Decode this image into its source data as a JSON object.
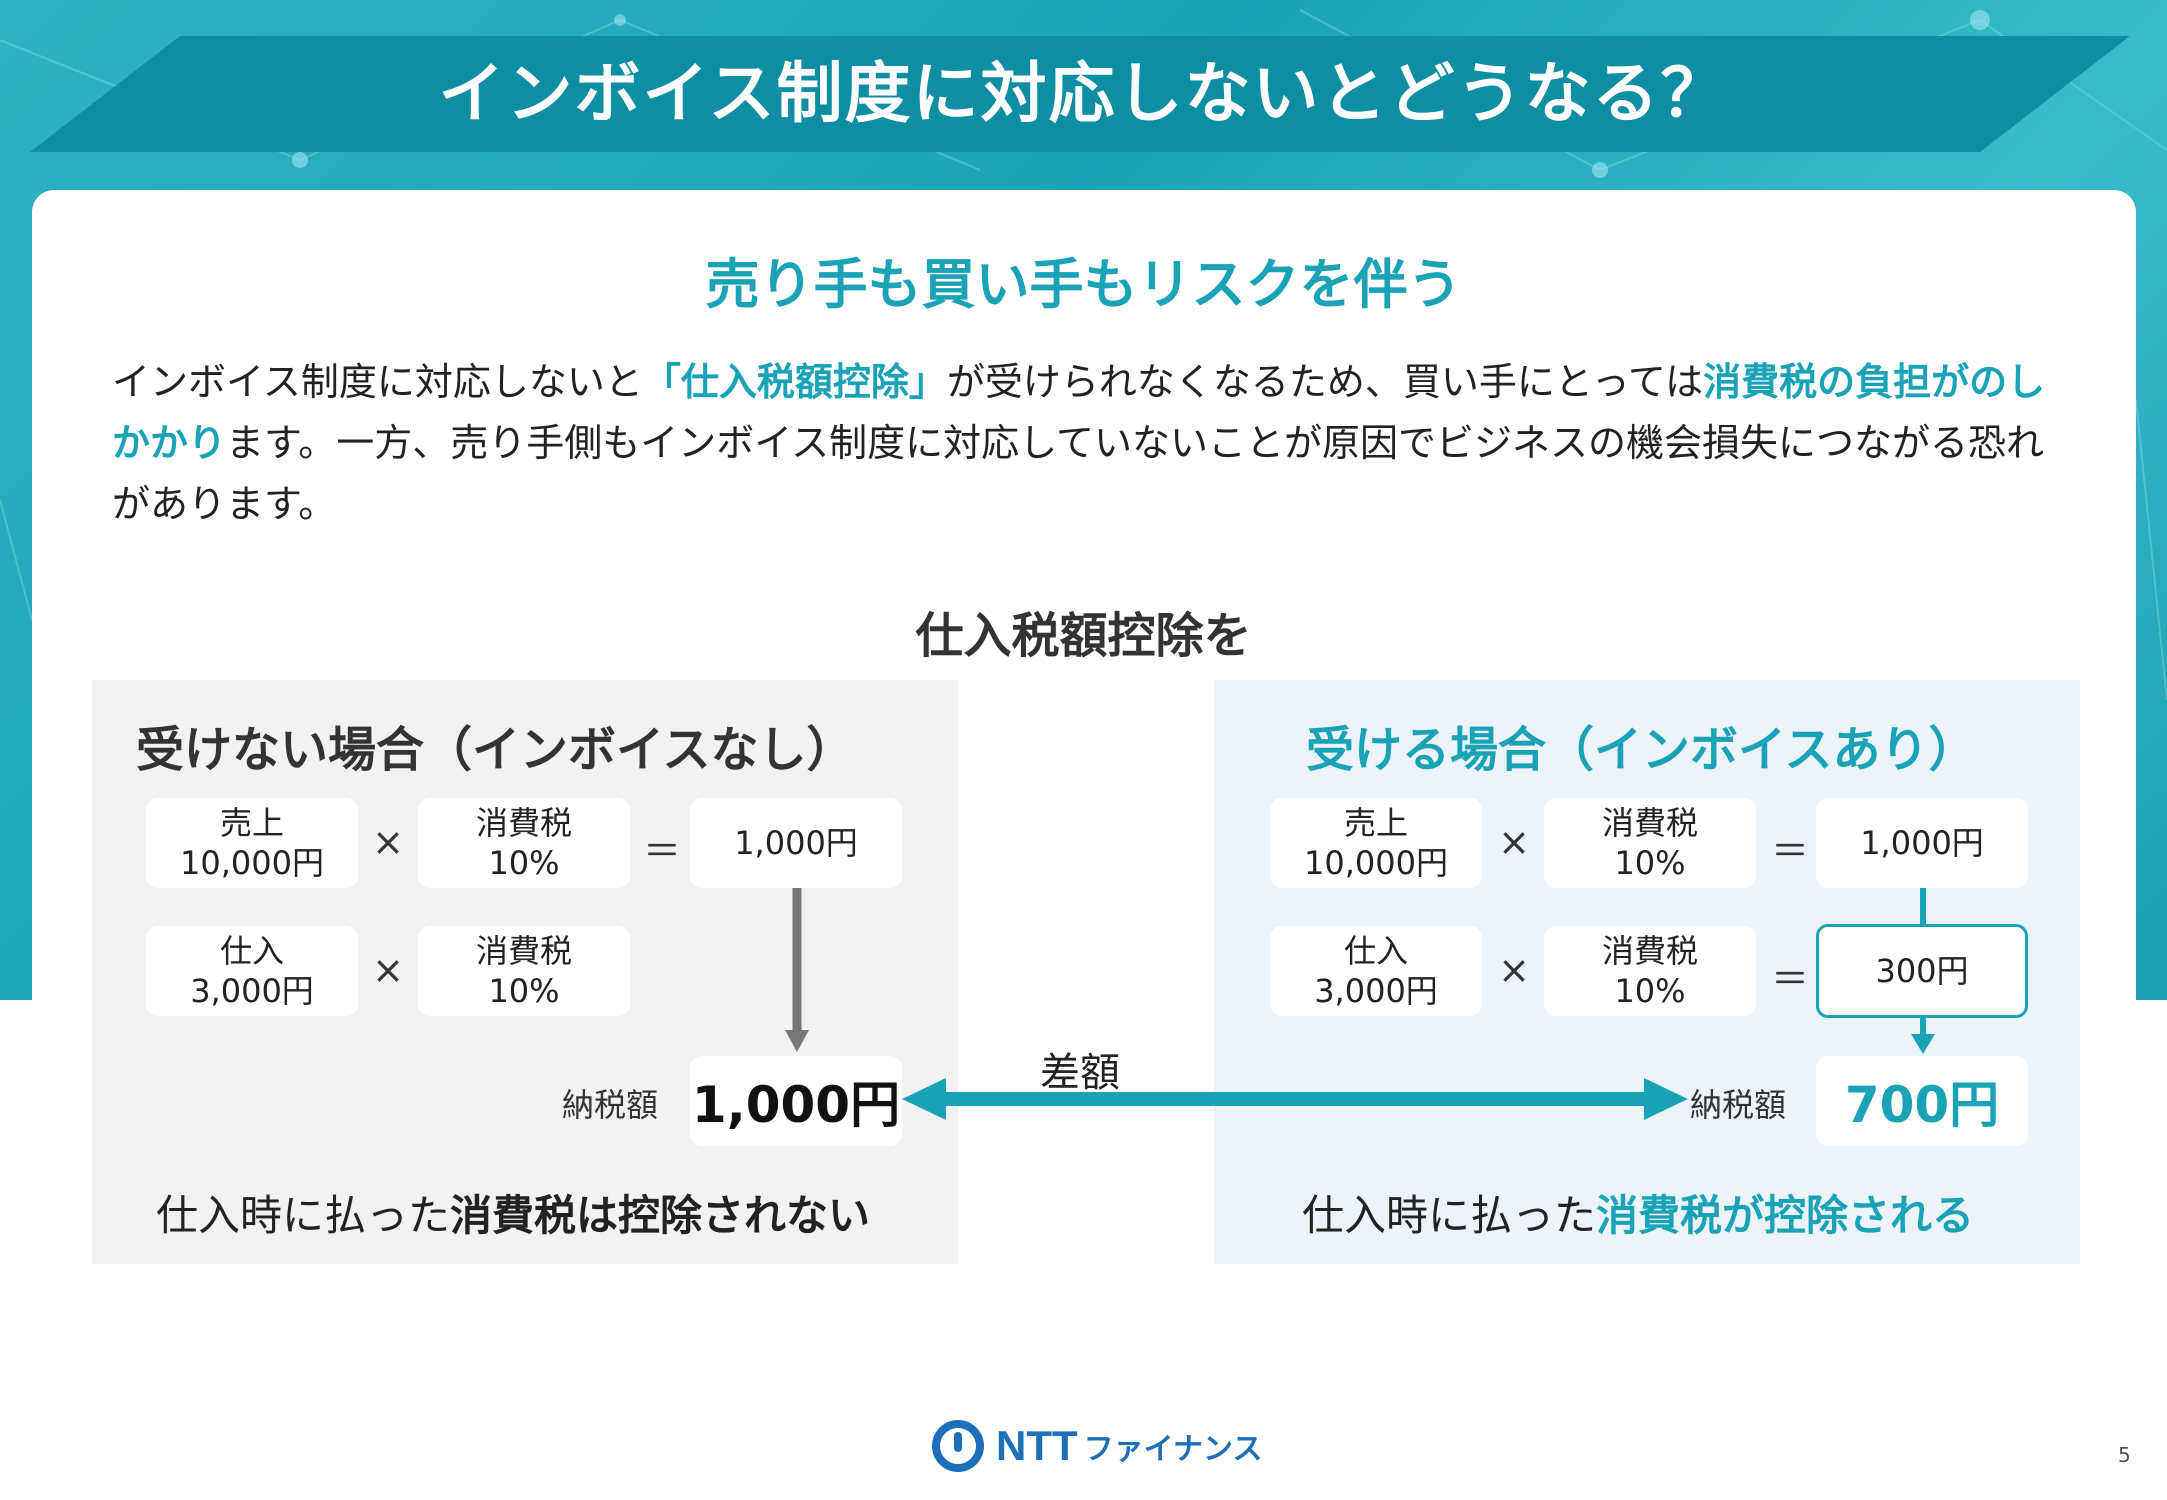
{
  "header": {
    "title": "インボイス制度に対応しないとどうなる？"
  },
  "subtitle": "売り手も買い手もリスクを伴う",
  "intro": {
    "p1": "インボイス制度に対応しないと",
    "h1": "「仕入税額控除」",
    "p2": "が受けられなくなるため、買い手にとっては",
    "h2": "消費税の負担がのしかかり",
    "p3": "ます。一方、売り手側もインボイス制度に対応していないことが原因でビジネスの機会損失につながる恐れがあります。"
  },
  "section_heading": "仕入税額控除を",
  "left_case": {
    "title": "受けない場合（インボイスなし）",
    "sales_label": "売上",
    "sales_value": "10,000円",
    "tax_label": "消費税",
    "tax_value": "10%",
    "result1": "1,000円",
    "purchase_label": "仕入",
    "purchase_value": "3,000円",
    "tax2_label": "消費税",
    "tax2_value": "10%",
    "pay_label": "納税額",
    "pay_value": "1,000円",
    "note_plain": "仕入時に払った",
    "note_bold": "消費税は控除されない"
  },
  "right_case": {
    "title": "受ける場合（インボイスあり）",
    "sales_label": "売上",
    "sales_value": "10,000円",
    "tax_label": "消費税",
    "tax_value": "10%",
    "result1": "1,000円",
    "purchase_label": "仕入",
    "purchase_value": "3,000円",
    "tax2_label": "消費税",
    "tax2_value": "10%",
    "result2": "300円",
    "pay_label": "納税額",
    "pay_value": "700円",
    "note_plain": "仕入時に払った",
    "note_bold": "消費税が控除される"
  },
  "operators": {
    "times": "×",
    "equals": "＝"
  },
  "diff_label": "差額",
  "logo": {
    "text": "NTT",
    "sub": "ファイナンス"
  },
  "page_number": "5",
  "colors": {
    "accent": "#1aa3b6",
    "title_band": "#0e8ea3",
    "gray_arrow": "#777777"
  }
}
